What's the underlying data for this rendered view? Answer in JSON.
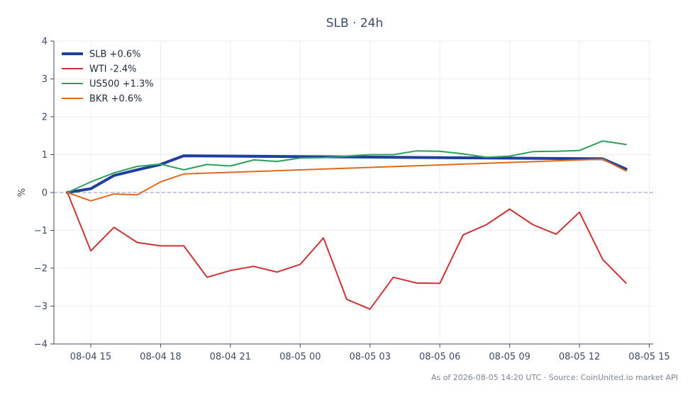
{
  "chart_data": {
    "type": "line",
    "title": "SLB · 24h",
    "xlabel": "",
    "ylabel": "%",
    "ylim": [
      -4,
      4
    ],
    "yticks": [
      -4,
      -3,
      -2,
      -1,
      0,
      1,
      2,
      3,
      4
    ],
    "ytick_labels": [
      "−4",
      "−3",
      "−2",
      "−1",
      "0",
      "1",
      "2",
      "3",
      "4"
    ],
    "xlim": [
      "2026-08-04 13:25",
      "2026-08-05 15:10"
    ],
    "xticks": [
      "2026-08-04 15:00",
      "2026-08-04 18:00",
      "2026-08-04 21:00",
      "2026-08-05 00:00",
      "2026-08-05 03:00",
      "2026-08-05 06:00",
      "2026-08-05 09:00",
      "2026-08-05 12:00",
      "2026-08-05 15:00"
    ],
    "xtick_labels": [
      "08-04 15",
      "08-04 18",
      "08-04 21",
      "08-05 00",
      "08-05 03",
      "08-05 06",
      "08-05 09",
      "08-05 12",
      "08-05 15"
    ],
    "grid": true,
    "zero_line": true,
    "legend_position": "top-left",
    "x": [
      "2026-08-04 14:00",
      "2026-08-04 15:00",
      "2026-08-04 16:00",
      "2026-08-04 17:00",
      "2026-08-04 18:00",
      "2026-08-04 19:00",
      "2026-08-04 20:00",
      "2026-08-04 21:00",
      "2026-08-04 22:00",
      "2026-08-04 23:00",
      "2026-08-05 00:00",
      "2026-08-05 01:00",
      "2026-08-05 02:00",
      "2026-08-05 03:00",
      "2026-08-05 04:00",
      "2026-08-05 05:00",
      "2026-08-05 06:00",
      "2026-08-05 07:00",
      "2026-08-05 08:00",
      "2026-08-05 09:00",
      "2026-08-05 10:00",
      "2026-08-05 11:00",
      "2026-08-05 12:00",
      "2026-08-05 13:00",
      "2026-08-05 14:00"
    ],
    "series": [
      {
        "name": "SLB +0.6%",
        "color": "#1f3fa0",
        "width": 4,
        "points": [
          [
            "2026-08-04 14:00",
            0
          ],
          [
            "2026-08-04 15:00",
            0.1
          ],
          [
            "2026-08-04 16:00",
            0.45
          ],
          [
            "2026-08-04 17:00",
            0.6
          ],
          [
            "2026-08-04 18:00",
            0.74
          ],
          [
            "2026-08-04 19:00",
            0.97
          ],
          [
            "2026-08-05 13:00",
            0.89
          ],
          [
            "2026-08-05 14:00",
            0.62
          ]
        ]
      },
      {
        "name": "WTI -2.4%",
        "color": "#cc3333",
        "width": 2,
        "values": [
          0,
          -1.54,
          -0.92,
          -1.32,
          -1.41,
          -1.41,
          -2.24,
          -2.06,
          -1.95,
          -2.1,
          -1.9,
          -1.2,
          -2.82,
          -3.08,
          -2.24,
          -2.39,
          -2.4,
          -1.12,
          -0.85,
          -0.44,
          -0.85,
          -1.1,
          -0.52,
          -1.77,
          -2.39
        ]
      },
      {
        "name": "US500 +1.3%",
        "color": "#2ca05a",
        "width": 2,
        "values": [
          0,
          0.28,
          0.52,
          0.69,
          0.75,
          0.6,
          0.74,
          0.7,
          0.86,
          0.82,
          0.91,
          0.92,
          0.96,
          1.0,
          1.0,
          1.1,
          1.09,
          1.02,
          0.93,
          0.96,
          1.08,
          1.09,
          1.11,
          1.36,
          1.27
        ]
      },
      {
        "name": "BKR +0.6%",
        "color": "#e06a1b",
        "width": 2,
        "points": [
          [
            "2026-08-04 14:00",
            0
          ],
          [
            "2026-08-04 15:00",
            -0.22
          ],
          [
            "2026-08-04 16:00",
            -0.04
          ],
          [
            "2026-08-04 17:00",
            -0.06
          ],
          [
            "2026-08-04 18:00",
            0.28
          ],
          [
            "2026-08-04 19:00",
            0.49
          ],
          [
            "2026-08-05 13:00",
            0.88
          ],
          [
            "2026-08-05 14:00",
            0.57
          ]
        ]
      }
    ],
    "footer": "As of 2026-08-05 14:20 UTC · Source: CoinUnited.io market API"
  },
  "colors": {
    "axis": "#3d4c63",
    "grid": "#ebedf0",
    "zero_line": "#8a96b0"
  }
}
